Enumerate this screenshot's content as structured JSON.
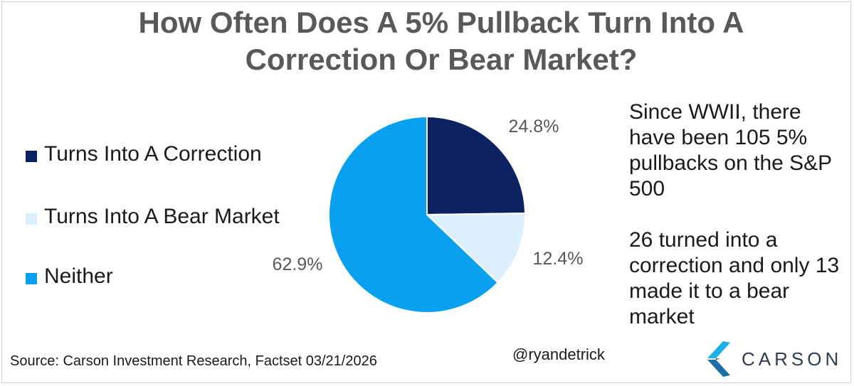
{
  "title": "How Often Does A 5% Pullback Turn Into A Correction Or Bear Market?",
  "chart_data": {
    "type": "pie",
    "title": "How Often Does A 5% Pullback Turn Into A Correction Or Bear Market?",
    "slices": [
      {
        "name": "Turns Into A Correction",
        "value": 24.8,
        "label": "24.8%",
        "color": "#0d2260"
      },
      {
        "name": "Turns Into A Bear Market",
        "value": 12.4,
        "label": "12.4%",
        "color": "#dcefff"
      },
      {
        "name": "Neither",
        "value": 62.9,
        "label": "62.9%",
        "color": "#0aa0f0"
      }
    ],
    "legend": "left"
  },
  "annotation": {
    "line1": "Since WWII, there have been 105 5% pullbacks on the S&P 500",
    "line2": "26 turned into a correction and only 13 made it to a bear market"
  },
  "source": "Source: Carson Investment Research, Factset 03/21/2026",
  "handle": "@ryandetrick",
  "logo": {
    "text": "CARSON",
    "icon": "carson-chevron-icon",
    "colors": [
      "#1ab0e8",
      "#1a6fa8",
      "#2f3e4e"
    ]
  }
}
